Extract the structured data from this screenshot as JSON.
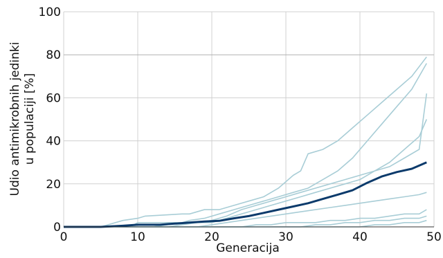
{
  "chart_data": {
    "type": "line",
    "title": "",
    "xlabel": "Generacija",
    "ylabel_lines": [
      "Udio antimikrobnih jedinki",
      "u populaciji [%]"
    ],
    "xlim": [
      0,
      50
    ],
    "ylim": [
      0,
      100
    ],
    "xticks": [
      0,
      10,
      20,
      30,
      40,
      50
    ],
    "yticks": [
      0,
      20,
      40,
      60,
      80,
      100
    ],
    "grid": true,
    "colors": {
      "runs": "#a8cdd6",
      "mean": "#0b3a6b",
      "grid": "#d0d0d0",
      "grid_major_y80": "#b0b0b0"
    },
    "mean": {
      "x": [
        0,
        5,
        8,
        10,
        13,
        15,
        17,
        19,
        21,
        23,
        25,
        27,
        29,
        31,
        33,
        35,
        37,
        39,
        41,
        43,
        45,
        47,
        49
      ],
      "y": [
        0,
        0,
        0.5,
        1,
        1,
        1.5,
        2,
        2.5,
        2.8,
        4,
        5,
        6.5,
        8,
        9.5,
        11,
        13,
        15,
        17,
        20.5,
        23.5,
        25.5,
        27,
        30
      ]
    },
    "series": [
      {
        "x": [
          0,
          5,
          6,
          7,
          8,
          10,
          11,
          16,
          17,
          18,
          19,
          21,
          23,
          25,
          27,
          29,
          31,
          32,
          33,
          35,
          37,
          39,
          41,
          43,
          45,
          47,
          49
        ],
        "y": [
          0,
          0,
          1,
          2,
          3,
          4,
          5,
          6,
          6,
          7,
          8,
          8,
          10,
          12,
          14,
          18,
          24,
          26,
          34,
          36,
          40,
          46,
          52,
          58,
          64,
          70,
          79
        ]
      },
      {
        "x": [
          0,
          9,
          10,
          12,
          14,
          16,
          17,
          19,
          21,
          23,
          25,
          27,
          29,
          31,
          33,
          35,
          37,
          39,
          41,
          43,
          45,
          47,
          49
        ],
        "y": [
          0,
          0,
          2,
          2,
          2,
          2,
          3,
          4,
          6,
          8,
          10,
          12,
          14,
          16,
          18,
          22,
          26,
          32,
          40,
          48,
          56,
          64,
          76
        ]
      },
      {
        "x": [
          0,
          12,
          14,
          16,
          18,
          20,
          22,
          24,
          26,
          28,
          30,
          32,
          34,
          36,
          38,
          40,
          42,
          44,
          46,
          48,
          49
        ],
        "y": [
          0,
          0,
          1,
          2,
          2,
          3,
          5,
          8,
          10,
          12,
          14,
          16,
          18,
          20,
          22,
          24,
          26,
          28,
          32,
          36,
          62
        ]
      },
      {
        "x": [
          0,
          14,
          16,
          18,
          20,
          22,
          24,
          26,
          28,
          30,
          32,
          34,
          36,
          38,
          40,
          42,
          44,
          46,
          48,
          49
        ],
        "y": [
          0,
          0,
          1,
          2,
          2,
          4,
          6,
          8,
          10,
          12,
          14,
          16,
          18,
          20,
          22,
          26,
          30,
          36,
          42,
          50
        ]
      },
      {
        "x": [
          0,
          18,
          20,
          22,
          24,
          26,
          28,
          30,
          32,
          34,
          36,
          38,
          40,
          42,
          44,
          46,
          48,
          49
        ],
        "y": [
          0,
          0,
          1,
          2,
          3,
          4,
          5,
          6,
          7,
          8,
          9,
          10,
          11,
          12,
          13,
          14,
          15,
          16
        ]
      },
      {
        "x": [
          0,
          22,
          24,
          26,
          28,
          30,
          32,
          34,
          36,
          38,
          40,
          42,
          44,
          46,
          48,
          49
        ],
        "y": [
          0,
          0,
          0,
          1,
          1,
          2,
          2,
          2,
          3,
          3,
          4,
          4,
          5,
          6,
          6,
          8
        ]
      },
      {
        "x": [
          0,
          30,
          32,
          34,
          36,
          38,
          40,
          42,
          44,
          46,
          48,
          49
        ],
        "y": [
          0,
          0,
          0,
          1,
          1,
          2,
          2,
          3,
          3,
          4,
          4,
          5
        ]
      },
      {
        "x": [
          0,
          40,
          42,
          44,
          46,
          48,
          49
        ],
        "y": [
          0,
          0,
          1,
          1,
          2,
          2,
          3
        ]
      }
    ]
  }
}
